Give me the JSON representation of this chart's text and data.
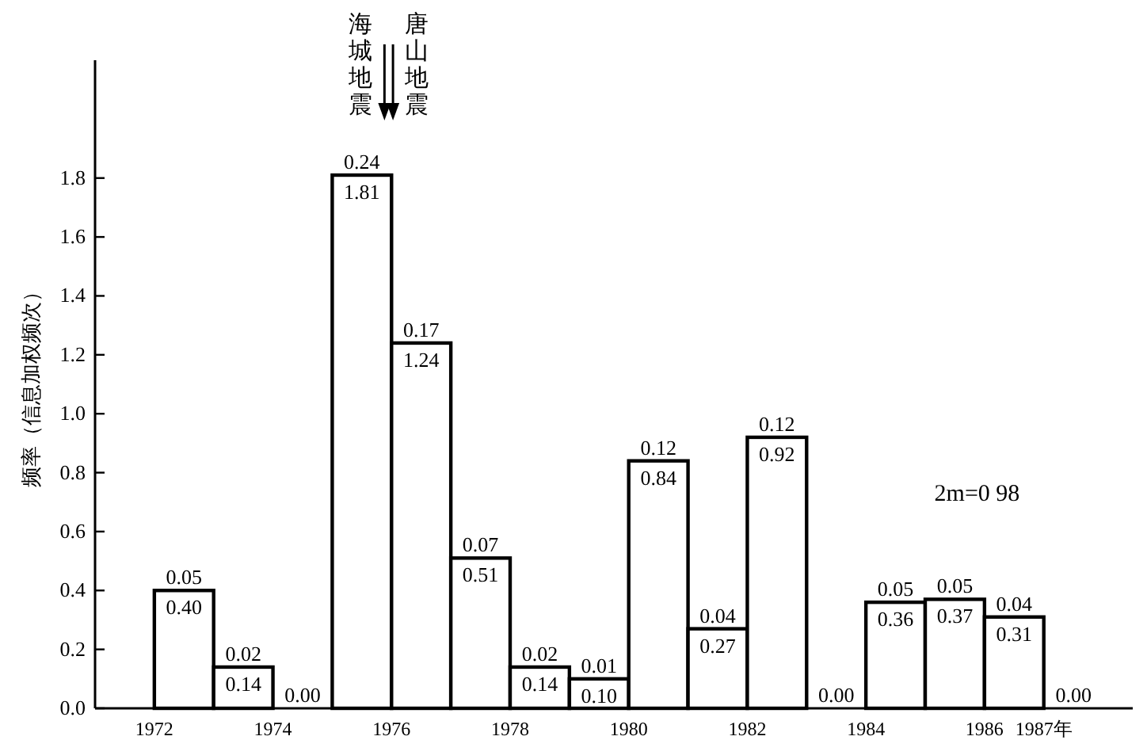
{
  "chart_data": {
    "type": "histogram",
    "ylabel": "频率（信息加权频次）",
    "bins": [
      1972,
      1973,
      1974,
      1975,
      1976,
      1977,
      1978,
      1979,
      1980,
      1981,
      1982,
      1983,
      1984,
      1985,
      1986,
      1987,
      1988
    ],
    "values": [
      0.4,
      0.14,
      0.0,
      1.81,
      1.24,
      0.51,
      0.14,
      0.1,
      0.84,
      0.27,
      0.92,
      0.0,
      0.36,
      0.37,
      0.31,
      0.0
    ],
    "color": "#000000",
    "value_labels": [
      "0.40",
      "0.14",
      "0.00",
      "1.81",
      "1.24",
      "0.51",
      "0.14",
      "0.10",
      "0.84",
      "0.27",
      "0.92",
      "0.00",
      "0.36",
      "0.37",
      "0.31",
      "0.00"
    ],
    "xlim": [
      1971,
      1988.5
    ],
    "xticks": [
      1972,
      1974,
      1976,
      1978,
      1980,
      1982,
      1984,
      1986,
      {
        "value": 1987,
        "label": "1987年"
      }
    ],
    "ylim": [
      0,
      2.2
    ],
    "yticks": [
      {
        "value": 0,
        "label": "0.0"
      },
      {
        "value": 0.2,
        "label": "0.2"
      },
      {
        "value": 0.4,
        "label": "0.4"
      },
      {
        "value": 0.6,
        "label": "0.6"
      },
      {
        "value": 0.8,
        "label": "0.8"
      },
      {
        "value": 1.0,
        "label": "1.0"
      },
      {
        "value": 1.2,
        "label": "1.2"
      },
      {
        "value": 1.4,
        "label": "1.4"
      },
      {
        "value": 1.6,
        "label": "1.6"
      },
      {
        "value": 1.8,
        "label": "1.8"
      }
    ],
    "grid": false,
    "annotations": [
      {
        "text": "0.05",
        "x": 1972.5,
        "y": 0.4
      },
      {
        "text": "0.02",
        "x": 1973.5,
        "y": 0.14
      },
      {
        "text": "0.24",
        "x": 1975.5,
        "y": 1.81
      },
      {
        "text": "0.17",
        "x": 1976.5,
        "y": 1.24
      },
      {
        "text": "0.07",
        "x": 1977.5,
        "y": 0.51
      },
      {
        "text": "0.02",
        "x": 1978.5,
        "y": 0.14
      },
      {
        "text": "0.01",
        "x": 1979.5,
        "y": 0.1
      },
      {
        "text": "0.12",
        "x": 1980.5,
        "y": 0.84
      },
      {
        "text": "0.04",
        "x": 1981.5,
        "y": 0.27
      },
      {
        "text": "0.12",
        "x": 1982.5,
        "y": 0.92
      },
      {
        "text": "0.05",
        "x": 1984.5,
        "y": 0.36
      },
      {
        "text": "0.05",
        "x": 1985.5,
        "y": 0.37
      },
      {
        "text": "0.04",
        "x": 1986.5,
        "y": 0.31
      },
      "海城地震",
      "唐山地震",
      "2m=0 98"
    ]
  }
}
